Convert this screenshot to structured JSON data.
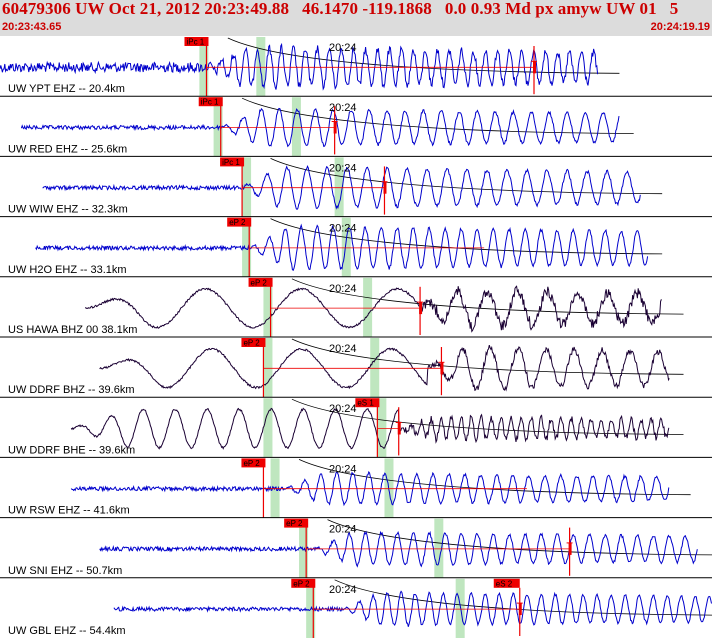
{
  "header": {
    "title": "60479306 UW Oct 21, 2012 20:23:49.88   46.1470 -119.1868   0.0 0.93 Md px amyw UW 01   5",
    "start_time": "20:23:43.65",
    "end_time": "20:24:19.19"
  },
  "colors": {
    "header_bg": "#dcdcdc",
    "header_text": "#cc0000",
    "trace_blue": "#0000cc",
    "trace_black": "#1a0033",
    "pick_red": "#ee0000",
    "window_green": "#bfe6bf",
    "separator": "#000000"
  },
  "channels": [
    {
      "label": "UW YPT EHZ -- 20.4km",
      "time_label": "20:24",
      "pick_label": "iPc 1",
      "color": "blue",
      "start": 0.0,
      "onset": 0.29,
      "end": 0.84,
      "low_amp": 5,
      "high_amp": 20,
      "period": 12,
      "pick_x": 0.29,
      "green_a": 0.28,
      "green_b": 0.36,
      "s_pick_x": 0.75,
      "s_pick_label": "",
      "curve": true,
      "slow": false
    },
    {
      "label": "UW RED EHZ -- 25.6km",
      "time_label": "20:24",
      "pick_label": "iPc 1",
      "color": "blue",
      "start": 0.03,
      "onset": 0.31,
      "end": 0.87,
      "low_amp": 2,
      "high_amp": 19,
      "period": 18,
      "pick_x": 0.31,
      "green_a": 0.3,
      "green_b": 0.41,
      "s_pick_x": 0.47,
      "s_pick_label": "",
      "curve": true,
      "slow": false
    },
    {
      "label": "UW WIW EHZ -- 32.3km",
      "time_label": "20:24",
      "pick_label": "iPc 1",
      "color": "blue",
      "start": 0.06,
      "onset": 0.34,
      "end": 0.9,
      "low_amp": 2,
      "high_amp": 21,
      "period": 20,
      "pick_x": 0.34,
      "green_a": 0.34,
      "green_b": 0.47,
      "s_pick_x": 0.54,
      "s_pick_label": "",
      "curve": true,
      "slow": false
    },
    {
      "label": "UW H2O EHZ -- 33.1km",
      "time_label": "20:24",
      "pick_label": "eP 2",
      "color": "blue",
      "start": 0.05,
      "onset": 0.35,
      "end": 0.91,
      "low_amp": 2,
      "high_amp": 22,
      "period": 16,
      "pick_x": 0.35,
      "green_a": 0.34,
      "green_b": 0.48,
      "s_pick_x": 0.0,
      "s_pick_label": "",
      "curve": true,
      "slow": false
    },
    {
      "label": "US HAWA BHZ 00 38.1km",
      "time_label": "20:24",
      "pick_label": "eP 2",
      "color": "black",
      "start": 0.12,
      "onset": 0.59,
      "end": 0.93,
      "low_amp": 7,
      "high_amp": 19,
      "period": 30,
      "pick_x": 0.38,
      "green_a": 0.37,
      "green_b": 0.51,
      "s_pick_x": 0.59,
      "s_pick_label": "",
      "curve": true,
      "slow": true
    },
    {
      "label": "UW DDRF BHZ -- 39.6km",
      "time_label": "20:24",
      "pick_label": "eP 2",
      "color": "black",
      "start": 0.14,
      "onset": 0.6,
      "end": 0.94,
      "low_amp": 4,
      "high_amp": 22,
      "period": 28,
      "pick_x": 0.37,
      "green_a": 0.37,
      "green_b": 0.52,
      "s_pick_x": 0.62,
      "s_pick_label": "",
      "curve": true,
      "slow": true
    },
    {
      "label": "UW DDRF BHE -- 39.6km",
      "time_label": "20:24",
      "pick_label": "eS 1",
      "color": "black",
      "start": 0.1,
      "onset": 0.56,
      "end": 0.94,
      "low_amp": 4,
      "high_amp": 12,
      "period": 10,
      "pick_x": 0.53,
      "green_a": 0.37,
      "green_b": 0.53,
      "s_pick_x": 0.56,
      "s_pick_label": "",
      "curve": true,
      "slow": true
    },
    {
      "label": "UW RSW EHZ -- 41.6km",
      "time_label": "20:24",
      "pick_label": "eP 2",
      "color": "blue",
      "start": 0.1,
      "onset": 0.4,
      "end": 0.94,
      "low_amp": 2,
      "high_amp": 16,
      "period": 16,
      "pick_x": 0.37,
      "green_a": 0.38,
      "green_b": 0.54,
      "s_pick_x": 0.0,
      "s_pick_label": "",
      "curve": true,
      "slow": false
    },
    {
      "label": "UW SNI EHZ -- 50.7km",
      "time_label": "20:24",
      "pick_label": "eP 2",
      "color": "blue",
      "start": 0.14,
      "onset": 0.44,
      "end": 0.98,
      "low_amp": 2,
      "high_amp": 17,
      "period": 16,
      "pick_x": 0.43,
      "green_a": 0.42,
      "green_b": 0.61,
      "s_pick_x": 0.8,
      "s_pick_label": "",
      "curve": true,
      "slow": false
    },
    {
      "label": "UW GBL EHZ -- 54.4km",
      "time_label": "20:24",
      "pick_label": "eP 2",
      "color": "blue",
      "start": 0.16,
      "onset": 0.48,
      "end": 1.0,
      "low_amp": 2,
      "high_amp": 17,
      "period": 14,
      "pick_x": 0.44,
      "green_a": 0.43,
      "green_b": 0.64,
      "s_pick_x": 0.73,
      "s_pick_label": "eS 2",
      "curve": true,
      "slow": false
    }
  ]
}
